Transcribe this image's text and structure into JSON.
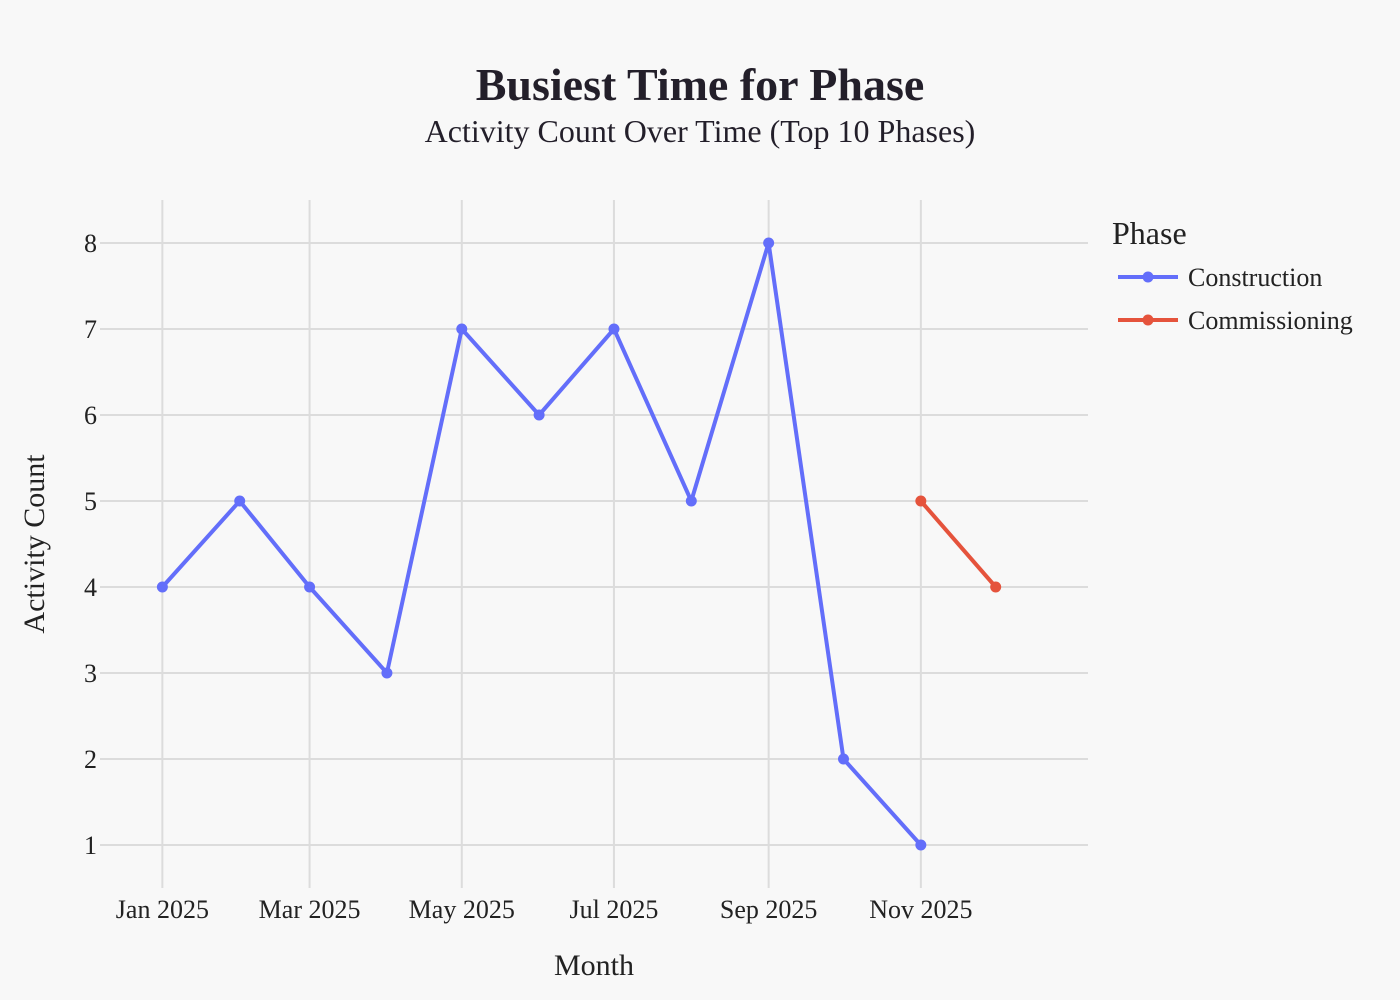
{
  "chart_data": {
    "type": "line",
    "title": "Busiest Time for Phase",
    "subtitle": "Activity Count Over Time (Top 10 Phases)",
    "xlabel": "Month",
    "ylabel": "Activity Count",
    "x_ticks": [
      "2025-01",
      "2025-03",
      "2025-05",
      "2025-07",
      "2025-09",
      "2025-11"
    ],
    "x_tick_labels": [
      "Jan 2025",
      "Mar 2025",
      "May 2025",
      "Jul 2025",
      "Sep 2025",
      "Nov 2025"
    ],
    "y_ticks": [
      1,
      2,
      3,
      4,
      5,
      6,
      7,
      8
    ],
    "xlim": [
      "2024-12-07",
      "2026-01-07"
    ],
    "ylim": [
      0.5,
      8.5
    ],
    "grid": true,
    "legend": {
      "title": "Phase",
      "position": "right"
    },
    "series": [
      {
        "name": "Construction",
        "color": "#636efa",
        "x": [
          "2025-01",
          "2025-02",
          "2025-03",
          "2025-04",
          "2025-05",
          "2025-06",
          "2025-07",
          "2025-08",
          "2025-09",
          "2025-10",
          "2025-11"
        ],
        "values": [
          4,
          5,
          4,
          3,
          7,
          6,
          7,
          5,
          8,
          2,
          1
        ]
      },
      {
        "name": "Commissioning",
        "color": "#e5533c",
        "x": [
          "2025-11",
          "2025-12"
        ],
        "values": [
          5,
          4
        ]
      }
    ]
  }
}
